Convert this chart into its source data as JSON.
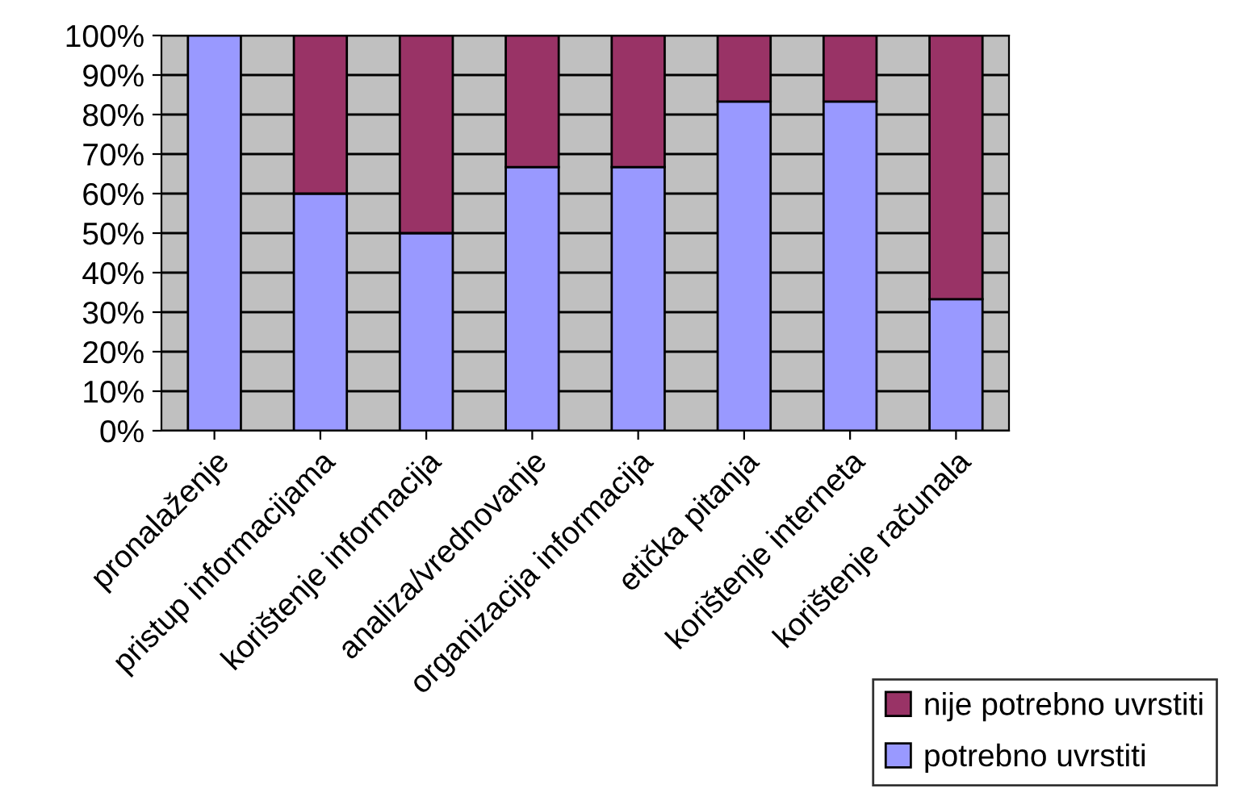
{
  "chart_data": {
    "type": "bar",
    "stacked": true,
    "categories": [
      "pronalaženje",
      "pristup informacijama",
      "korištenje informacija",
      "analiza/vrednovanje",
      "organizacija informacija",
      "etička pitanja",
      "korištenje interneta",
      "korištenje računala"
    ],
    "series": [
      {
        "name": "potrebno uvrstiti",
        "color": "#9999ff",
        "values": [
          100,
          60,
          50,
          66.7,
          66.7,
          83.3,
          83.3,
          33.3
        ]
      },
      {
        "name": "nije potrebno uvrstiti",
        "color": "#993366",
        "values": [
          null,
          40,
          50,
          33.3,
          33.3,
          16.7,
          16.7,
          66.7
        ]
      }
    ],
    "ylim": [
      0,
      100
    ],
    "yticks": [
      {
        "value": 0,
        "label": "0%"
      },
      {
        "value": 10,
        "label": "10%"
      },
      {
        "value": 20,
        "label": "20%"
      },
      {
        "value": 30,
        "label": "30%"
      },
      {
        "value": 40,
        "label": "40%"
      },
      {
        "value": 50,
        "label": "50%"
      },
      {
        "value": 60,
        "label": "60%"
      },
      {
        "value": 70,
        "label": "70%"
      },
      {
        "value": 80,
        "label": "80%"
      },
      {
        "value": 90,
        "label": "90%"
      },
      {
        "value": 100,
        "label": "100%"
      }
    ],
    "grid": "y",
    "legend": "bottom right"
  }
}
